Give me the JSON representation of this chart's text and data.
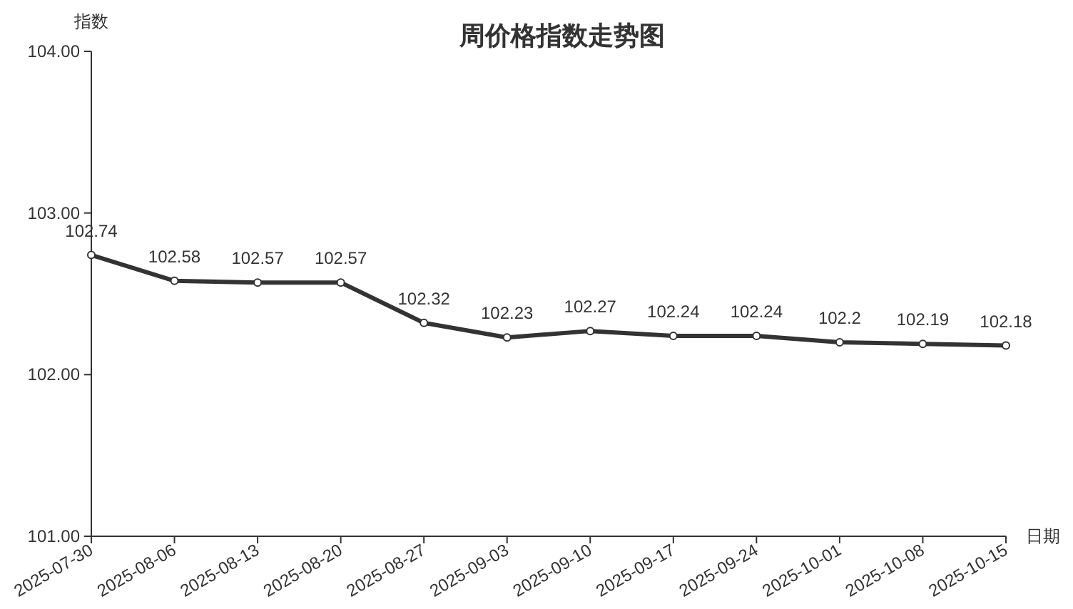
{
  "chart_data": {
    "type": "line",
    "title": "周价格指数走势图",
    "xlabel": "日期",
    "ylabel": "指数",
    "categories": [
      "2025-07-30",
      "2025-08-06",
      "2025-08-13",
      "2025-08-20",
      "2025-08-27",
      "2025-09-03",
      "2025-09-10",
      "2025-09-17",
      "2025-09-24",
      "2025-10-01",
      "2025-10-08",
      "2025-10-15"
    ],
    "values": [
      102.74,
      102.58,
      102.57,
      102.57,
      102.32,
      102.23,
      102.27,
      102.24,
      102.24,
      102.2,
      102.19,
      102.18
    ],
    "color": "#333333",
    "ylim": [
      101,
      104
    ],
    "yticks": [
      {
        "value": 101,
        "label": "101.00"
      },
      {
        "value": 102,
        "label": "102.00"
      },
      {
        "value": 103,
        "label": "103.00"
      },
      {
        "value": 104,
        "label": "104.00"
      }
    ],
    "marker": "circle",
    "line_style": "solid",
    "data_labels": true
  }
}
